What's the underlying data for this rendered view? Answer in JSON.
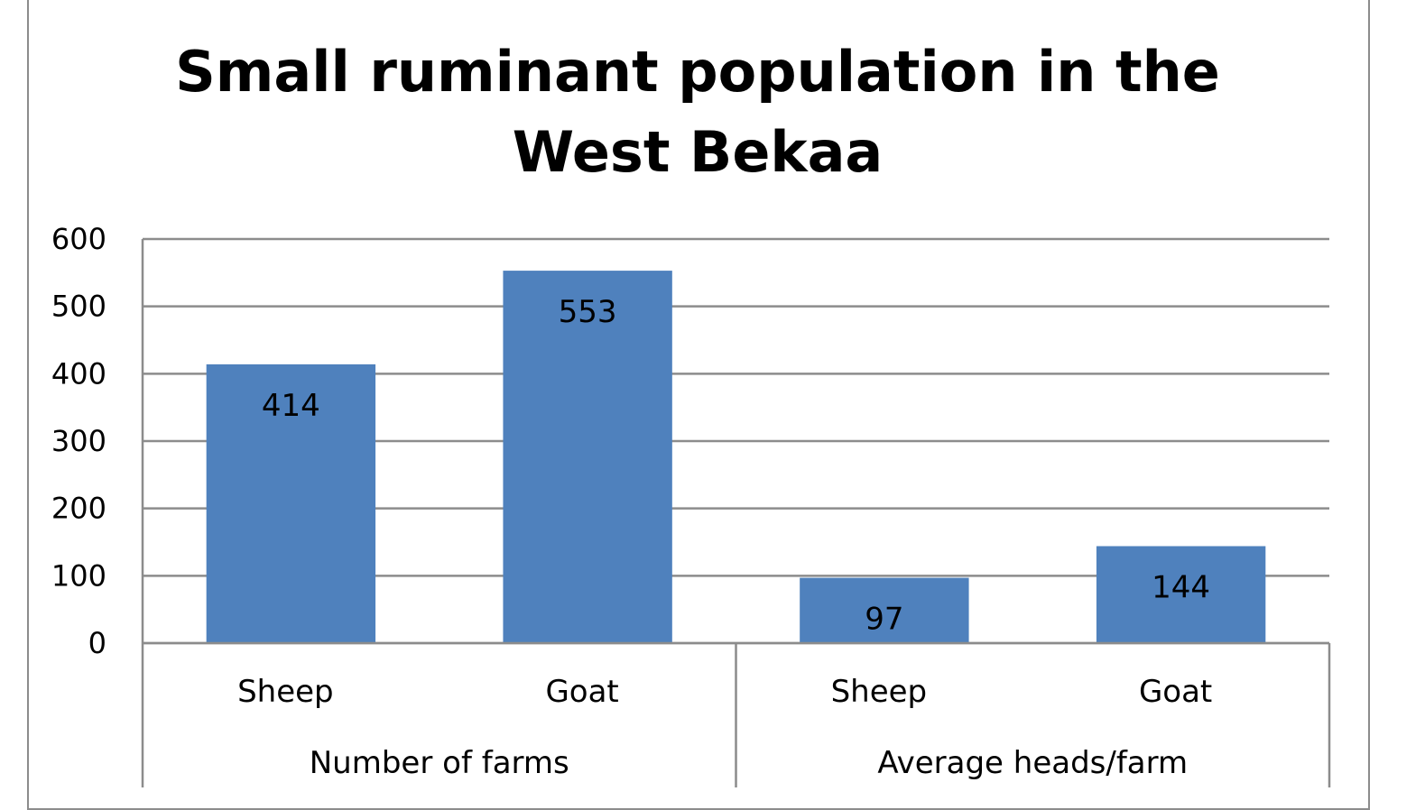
{
  "chart_data": {
    "type": "bar",
    "title_lines": [
      "Small ruminant population in the",
      "West Bekaa"
    ],
    "ylim": [
      0,
      600
    ],
    "yticks": [
      0,
      100,
      200,
      300,
      400,
      500,
      600
    ],
    "grid": true,
    "legend": "none",
    "bar_color": "#4f81bd",
    "grid_color": "#8c8c8c",
    "groups": [
      {
        "label": "Number of farms",
        "bars": [
          {
            "category": "Sheep",
            "value": 414
          },
          {
            "category": "Goat",
            "value": 553
          }
        ]
      },
      {
        "label": "Average heads/farm",
        "bars": [
          {
            "category": "Sheep",
            "value": 97
          },
          {
            "category": "Goat",
            "value": 144
          }
        ]
      }
    ]
  }
}
